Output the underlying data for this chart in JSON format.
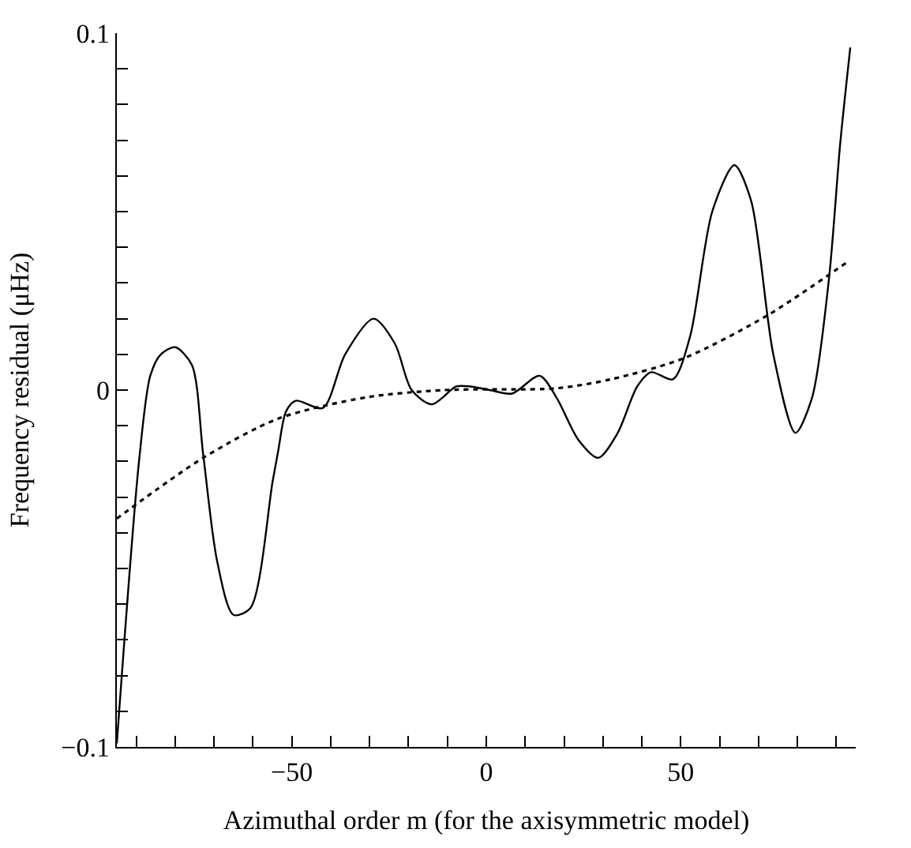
{
  "chart_data": {
    "type": "line",
    "xlabel": "Azimuthal order m (for the axisymmetric model)",
    "ylabel": "Frequency residual (μHz)",
    "xlim": [
      -95,
      95
    ],
    "ylim": [
      -0.1,
      0.1
    ],
    "xticks": [
      {
        "value": -90,
        "label": null
      },
      {
        "value": -80,
        "label": null
      },
      {
        "value": -70,
        "label": null
      },
      {
        "value": -60,
        "label": null
      },
      {
        "value": -50,
        "label": "−50"
      },
      {
        "value": -40,
        "label": null
      },
      {
        "value": -30,
        "label": null
      },
      {
        "value": -20,
        "label": null
      },
      {
        "value": -10,
        "label": null
      },
      0,
      {
        "value": 10,
        "label": null
      },
      {
        "value": 20,
        "label": null
      },
      {
        "value": 30,
        "label": null
      },
      {
        "value": 40,
        "label": null
      },
      50,
      {
        "value": 60,
        "label": null
      },
      {
        "value": 70,
        "label": null
      },
      {
        "value": 80,
        "label": null
      },
      {
        "value": 90,
        "label": null
      }
    ],
    "yticks": [
      {
        "value": -0.1,
        "label": "−0.1"
      },
      {
        "value": -0.09,
        "label": null
      },
      {
        "value": -0.08,
        "label": null
      },
      {
        "value": -0.07,
        "label": null
      },
      {
        "value": -0.06,
        "label": null
      },
      {
        "value": -0.05,
        "label": null
      },
      {
        "value": -0.04,
        "label": null
      },
      {
        "value": -0.03,
        "label": null
      },
      {
        "value": -0.02,
        "label": null
      },
      {
        "value": -0.01,
        "label": null
      },
      0,
      {
        "value": 0.01,
        "label": null
      },
      {
        "value": 0.02,
        "label": null
      },
      {
        "value": 0.03,
        "label": null
      },
      {
        "value": 0.04,
        "label": null
      },
      {
        "value": 0.05,
        "label": null
      },
      {
        "value": 0.06,
        "label": null
      },
      {
        "value": 0.07,
        "label": null
      },
      {
        "value": 0.08,
        "label": null
      },
      {
        "value": 0.09,
        "label": null
      },
      0.1
    ],
    "marker": "none",
    "series": [
      {
        "color": "#000000",
        "line_style": "solid",
        "x": [
          -95,
          -89.3,
          -86.4,
          -83.7,
          -80,
          -75.7,
          -72.8,
          -69.2,
          -65,
          -60.6,
          -55,
          -53.5,
          -51.5,
          -49,
          -42,
          -36.3,
          -29,
          -23.5,
          -19.2,
          -14,
          -7.7,
          -4,
          0.9,
          6.6,
          13.7,
          18,
          23.7,
          28.8,
          33.8,
          38.8,
          42.4,
          48,
          52.4,
          58.1,
          63.8,
          68.1,
          73.8,
          79.5,
          83.8,
          88.1,
          91,
          93.6
        ],
        "values": [
          -0.099,
          -0.02,
          0.004,
          0.01,
          0.012,
          0.007,
          -0.018,
          -0.048,
          -0.063,
          -0.061,
          -0.026,
          -0.017,
          -0.006,
          -0.003,
          -0.005,
          0.01,
          0.02,
          0.013,
          0.0,
          -0.004,
          0.001,
          0.001,
          0.0,
          -0.001,
          0.004,
          -0.002,
          -0.014,
          -0.019,
          -0.012,
          0.001,
          0.005,
          0.003,
          0.015,
          0.05,
          0.063,
          0.053,
          0.01,
          -0.012,
          -0.002,
          0.031,
          0.069,
          0.096
        ]
      },
      {
        "color": "#000000",
        "line_style": "dotted",
        "x": [
          -95,
          -72.8,
          -53.5,
          -30.6,
          -10.7,
          18,
          32,
          51,
          72.4,
          93
        ],
        "values": [
          -0.036,
          -0.019,
          -0.008,
          -0.002,
          0.0,
          0.0005,
          0.003,
          0.009,
          0.021,
          0.036
        ]
      }
    ]
  }
}
